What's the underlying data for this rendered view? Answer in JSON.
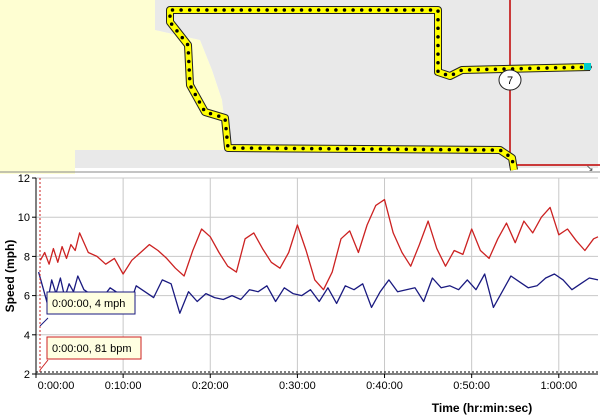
{
  "map": {
    "marker_label": "7",
    "colors": {
      "land": "#fefed2",
      "area": "#e9e9e9",
      "route": "#ffff00",
      "route_border": "#222222",
      "road": "#c00000",
      "end_marker": "#00cccc"
    }
  },
  "chart_data": {
    "type": "line",
    "title": "",
    "xlabel": "Time (hr:min:sec)",
    "ylabel": "Speed (mph)",
    "xlim": [
      0,
      64.5
    ],
    "ylim": [
      2,
      12
    ],
    "y_ticks": [
      2,
      4,
      6,
      8,
      10,
      12
    ],
    "x_ticks": [
      {
        "value": 0,
        "label": "0:00:00"
      },
      {
        "value": 10,
        "label": "0:10:00"
      },
      {
        "value": 20,
        "label": "0:20:00"
      },
      {
        "value": 30,
        "label": "0:30:00"
      },
      {
        "value": 40,
        "label": "0:40:00"
      },
      {
        "value": 50,
        "label": "0:50:00"
      },
      {
        "value": 60,
        "label": "1:00:00"
      }
    ],
    "grid": true,
    "series": [
      {
        "color": "#cc2222",
        "x": [
          0.5,
          1,
          1.5,
          2,
          2.5,
          3,
          3.5,
          4,
          4.5,
          5,
          6,
          7,
          8,
          9,
          10,
          11,
          12,
          13,
          14,
          15,
          16,
          17,
          18,
          19,
          20,
          21,
          22,
          23,
          24,
          25,
          26,
          27,
          28,
          29,
          30,
          31,
          32,
          33,
          34,
          35,
          36,
          37,
          38,
          39,
          40,
          41,
          42,
          43,
          44,
          45,
          46,
          47,
          48,
          49,
          50,
          51,
          52,
          53,
          54,
          55,
          56,
          57,
          58,
          59,
          60,
          61,
          62,
          63,
          64,
          64.5
        ],
        "y": [
          7.8,
          8.2,
          7.6,
          8.4,
          7.7,
          8.5,
          7.9,
          8.6,
          8.3,
          9.2,
          8.2,
          8.0,
          7.6,
          7.9,
          7.1,
          7.8,
          8.2,
          8.6,
          8.3,
          7.9,
          7.4,
          7.0,
          8.3,
          9.4,
          9.0,
          8.2,
          7.5,
          7.2,
          8.9,
          9.2,
          8.4,
          7.7,
          7.4,
          8.2,
          9.6,
          8.3,
          6.8,
          6.3,
          7.2,
          8.9,
          9.3,
          8.2,
          9.6,
          10.6,
          10.9,
          9.2,
          8.2,
          7.5,
          8.6,
          9.8,
          8.4,
          7.5,
          8.3,
          8.1,
          9.4,
          8.3,
          7.9,
          8.9,
          9.7,
          8.7,
          9.8,
          9.2,
          10.0,
          10.5,
          9.1,
          9.4,
          8.8,
          8.3,
          8.9,
          9.0
        ]
      },
      {
        "color": "#1a1a80",
        "x": [
          0.3,
          0.8,
          1.3,
          1.8,
          2.3,
          2.8,
          3.3,
          3.8,
          4.3,
          4.8,
          5.5,
          6.5,
          7.5,
          8.5,
          9.5,
          10.5,
          11.5,
          12.5,
          13.5,
          14.5,
          15.5,
          16.5,
          17.5,
          18.5,
          19.5,
          20.5,
          21.5,
          22.5,
          23.5,
          24.5,
          25.5,
          26.5,
          27.5,
          28.5,
          29.5,
          30.5,
          31.5,
          32.5,
          33.5,
          34.5,
          35.5,
          36.5,
          37.5,
          38.5,
          39.5,
          40.5,
          41.5,
          42.5,
          43.5,
          44.5,
          45.5,
          46.5,
          47.5,
          48.5,
          49.5,
          50.5,
          51.5,
          52.5,
          53.5,
          54.5,
          55.5,
          56.5,
          57.5,
          58.5,
          59.5,
          60.5,
          61.5,
          62.5,
          63.5,
          64.5
        ],
        "y": [
          7.2,
          6.4,
          5.6,
          6.8,
          6.1,
          6.9,
          5.9,
          6.6,
          6.2,
          7.0,
          6.3,
          6.0,
          5.8,
          6.4,
          6.1,
          5.2,
          6.5,
          6.2,
          5.9,
          6.8,
          6.6,
          5.1,
          6.2,
          5.7,
          6.1,
          5.9,
          5.8,
          6.0,
          5.8,
          6.3,
          6.2,
          6.5,
          5.7,
          6.4,
          6.1,
          6.0,
          6.3,
          5.7,
          6.4,
          5.6,
          6.5,
          6.3,
          6.6,
          5.4,
          6.2,
          6.8,
          6.2,
          6.3,
          6.4,
          5.7,
          6.9,
          6.4,
          6.5,
          6.3,
          6.8,
          6.3,
          7.1,
          5.4,
          6.2,
          7.0,
          6.7,
          6.4,
          6.5,
          6.9,
          7.1,
          6.8,
          6.3,
          6.6,
          6.9,
          6.8
        ]
      }
    ],
    "callouts": [
      {
        "text": "0:00:00, 4 mph",
        "color": "#1a1a80"
      },
      {
        "text": "0:00:00, 81 bpm",
        "color": "#cc2222"
      }
    ]
  }
}
